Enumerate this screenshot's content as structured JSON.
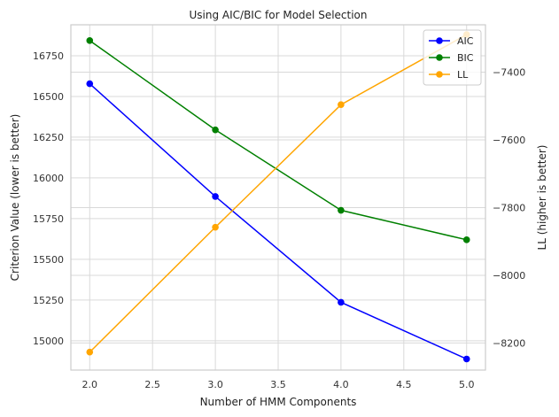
{
  "chart_data": {
    "type": "line",
    "title": "Using AIC/BIC for Model Selection",
    "xlabel": "Number of HMM Components",
    "ylabel": "Criterion Value (lower is better)",
    "y2label": "LL (higher is better)",
    "x": [
      2,
      3,
      4,
      5
    ],
    "xlim": [
      1.85,
      5.15
    ],
    "ylim": [
      14820,
      16940
    ],
    "y2lim": [
      -8280,
      -7260
    ],
    "xticks": [
      2.0,
      2.5,
      3.0,
      3.5,
      4.0,
      4.5,
      5.0
    ],
    "xtick_labels": [
      "2.0",
      "2.5",
      "3.0",
      "3.5",
      "4.0",
      "4.5",
      "5.0"
    ],
    "yticks": [
      15000,
      15250,
      15500,
      15750,
      16000,
      16250,
      16500,
      16750
    ],
    "ytick_labels": [
      "15000",
      "15250",
      "15500",
      "15750",
      "16000",
      "16250",
      "16500",
      "16750"
    ],
    "y2ticks": [
      -8200,
      -8000,
      -7800,
      -7600,
      -7400
    ],
    "y2tick_labels": [
      "−8200",
      "−8000",
      "−7800",
      "−7600",
      "−7400"
    ],
    "grid": true,
    "legend_position": "top-right",
    "series": [
      {
        "name": "AIC",
        "axis": "left",
        "color": "#0000ff",
        "values": [
          16578,
          15886,
          15236,
          14888
        ]
      },
      {
        "name": "BIC",
        "axis": "left",
        "color": "#008000",
        "values": [
          16843,
          16295,
          15801,
          15620
        ]
      },
      {
        "name": "LL",
        "axis": "right",
        "color": "#ffa500",
        "values": [
          -8227,
          -7858,
          -7496,
          -7289
        ]
      }
    ]
  }
}
